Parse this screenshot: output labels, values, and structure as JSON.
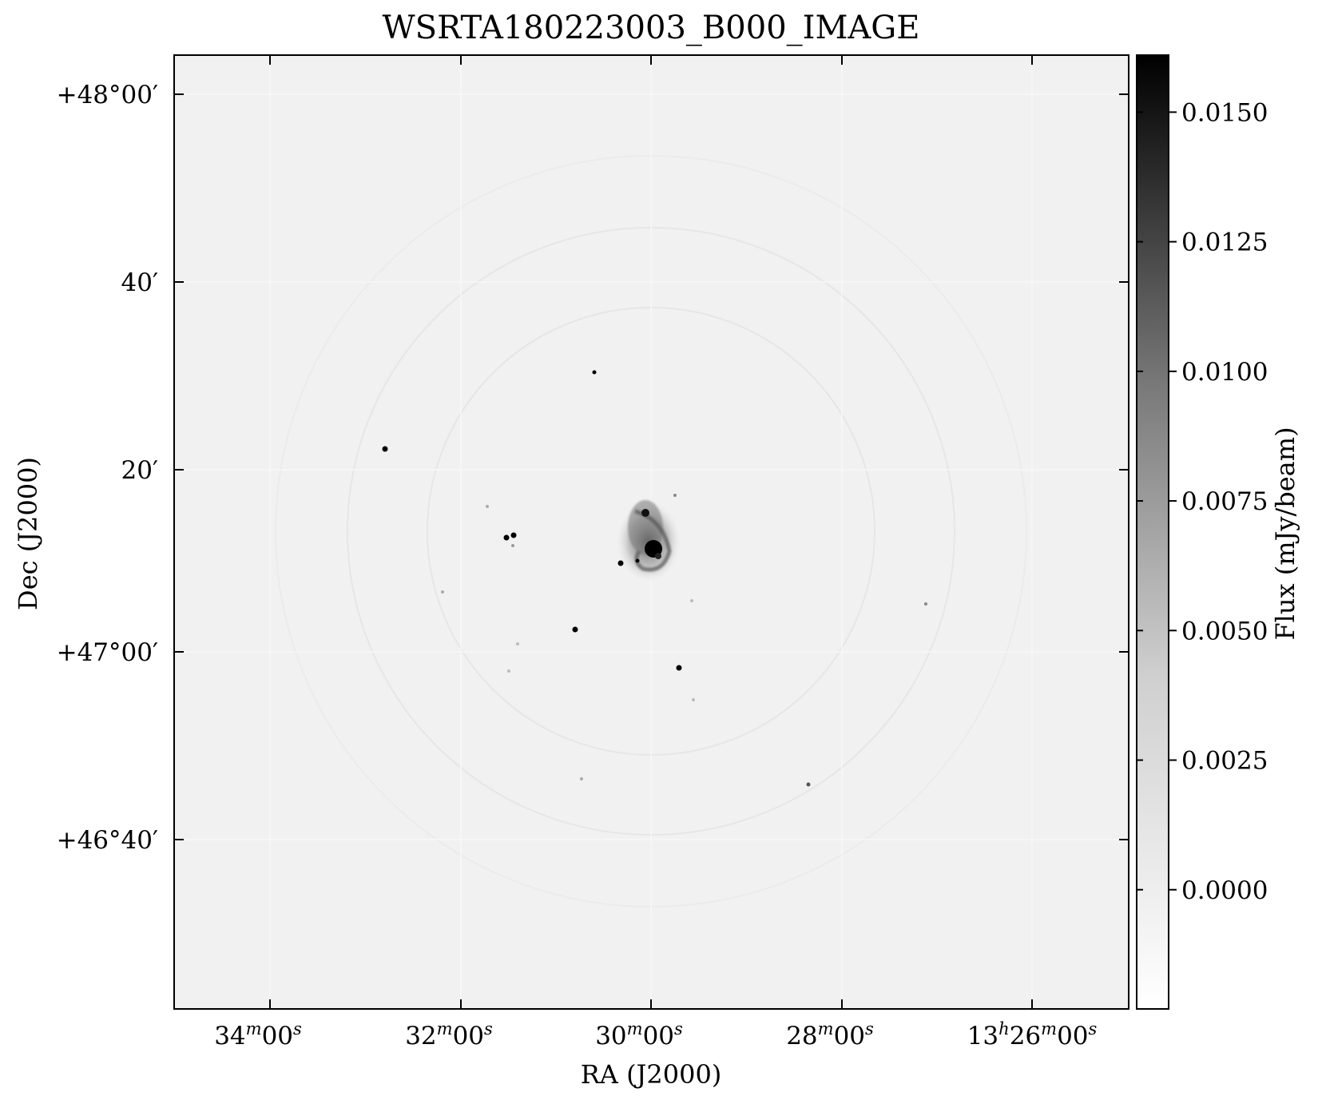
{
  "title": "WSRTA180223003_B000_IMAGE",
  "x_axis": {
    "label": "RA (J2000)",
    "ticks": [
      {
        "main": "34",
        "unit1": "m",
        "sec": "00",
        "unit2": "s"
      },
      {
        "main": "32",
        "unit1": "m",
        "sec": "00",
        "unit2": "s"
      },
      {
        "main": "30",
        "unit1": "m",
        "sec": "00",
        "unit2": "s"
      },
      {
        "main": "28",
        "unit1": "m",
        "sec": "00",
        "unit2": "s"
      },
      {
        "pre": "13",
        "preunit": "h",
        "main": "26",
        "unit1": "m",
        "sec": "00",
        "unit2": "s"
      }
    ]
  },
  "y_axis": {
    "label": "Dec (J2000)",
    "ticks": [
      "+48°00′",
      "40′",
      "20′",
      "+47°00′",
      "+46°40′"
    ]
  },
  "colorbar": {
    "label": "Flux (mJy/beam)",
    "ticks": [
      "0.0150",
      "0.0125",
      "0.0100",
      "0.0075",
      "0.0050",
      "0.0025",
      "0.0000"
    ],
    "tick_values": [
      0.015,
      0.0125,
      0.01,
      0.0075,
      0.005,
      0.0025,
      0.0
    ],
    "min": -0.0023,
    "max": 0.0161
  },
  "colors": {
    "background": "#ffffff",
    "image_bg": "#f1f1f1",
    "source": "#000000"
  }
}
